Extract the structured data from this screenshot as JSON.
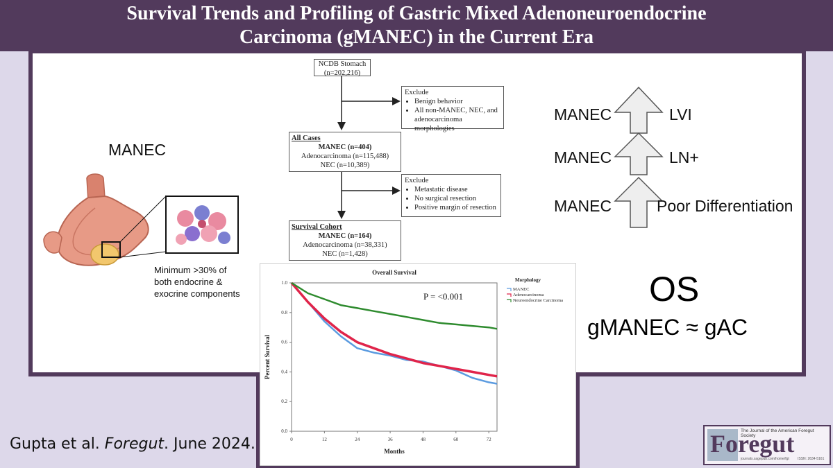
{
  "title": {
    "line1": "Survival Trends and Profiling of Gastric Mixed Adenoneuroendocrine",
    "line2": "Carcinoma (gMANEC) in the Current Era"
  },
  "left_panel": {
    "label": "MANEC",
    "caption": [
      "Minimum >30% of",
      "both endocrine &",
      "exocrine components"
    ]
  },
  "flowchart": {
    "top": {
      "title": "NCDB Stomach",
      "n": "(n=202,216)"
    },
    "exclude1": {
      "heading": "Exclude",
      "items": [
        "Benign behavior",
        "All non-MANEC, NEC, and",
        "adenocarcinoma morphologies"
      ]
    },
    "all_cases": {
      "heading": "All Cases",
      "lines": [
        "MANEC (n=404)",
        "Adenocarcinoma (n=115,488)",
        "NEC (n=10,389)"
      ]
    },
    "exclude2": {
      "heading": "Exclude",
      "items": [
        "Metastatic disease",
        "No surgical resection",
        "Positive margin of resection"
      ]
    },
    "survival": {
      "heading": "Survival Cohort",
      "lines": [
        "MANEC (n=164)",
        "Adenocarcinoma (n=38,331)",
        "NEC (n=1,428)"
      ]
    }
  },
  "arrows": [
    {
      "left": "MANEC",
      "right": "LVI"
    },
    {
      "left": "MANEC",
      "right": "LN+"
    },
    {
      "left": "MANEC",
      "right": "Poor Differentiation"
    }
  ],
  "os": {
    "title": "OS",
    "subtitle": "gMANEC ≈ gAC"
  },
  "citation": {
    "authors": "Gupta et al. ",
    "journal": "Foregut",
    "date": ". June 2024."
  },
  "logo": {
    "tagline": "The Journal of the American Foregut Society",
    "name": "Foregut",
    "url": "journals.sagepub.com/home/fgt",
    "issn": "ISSN: 2634-5161"
  },
  "chart_data": {
    "type": "line",
    "title": "Overall Survival",
    "xlabel": "Months",
    "ylabel": "Percent Survival",
    "xlim": [
      0,
      75
    ],
    "ylim": [
      0,
      1.0
    ],
    "x_ticks": [
      0,
      12,
      24,
      36,
      48,
      60,
      72
    ],
    "y_ticks": [
      0.0,
      0.2,
      0.4,
      0.6,
      0.8,
      1.0
    ],
    "annotation": "P = <0.001",
    "legend_title": "Morphology",
    "series": [
      {
        "name": "MANEC",
        "color": "#5b9be0",
        "x": [
          0,
          6,
          12,
          18,
          24,
          30,
          36,
          42,
          48,
          54,
          60,
          66,
          72,
          75
        ],
        "y": [
          1.0,
          0.87,
          0.74,
          0.64,
          0.56,
          0.53,
          0.51,
          0.48,
          0.47,
          0.44,
          0.41,
          0.36,
          0.33,
          0.32
        ]
      },
      {
        "name": "Adenocarcinoma",
        "color": "#e0244a",
        "x": [
          0,
          6,
          12,
          18,
          24,
          30,
          36,
          42,
          48,
          54,
          60,
          66,
          72,
          75
        ],
        "y": [
          1.0,
          0.87,
          0.76,
          0.67,
          0.6,
          0.56,
          0.52,
          0.49,
          0.46,
          0.44,
          0.42,
          0.4,
          0.38,
          0.37
        ]
      },
      {
        "name": "Neuroendocrine Carcinoma",
        "color": "#2e8b2e",
        "x": [
          0,
          6,
          12,
          18,
          24,
          30,
          36,
          42,
          48,
          54,
          60,
          66,
          72,
          75
        ],
        "y": [
          1.0,
          0.93,
          0.89,
          0.85,
          0.83,
          0.81,
          0.79,
          0.77,
          0.75,
          0.73,
          0.72,
          0.71,
          0.7,
          0.69
        ]
      }
    ]
  }
}
